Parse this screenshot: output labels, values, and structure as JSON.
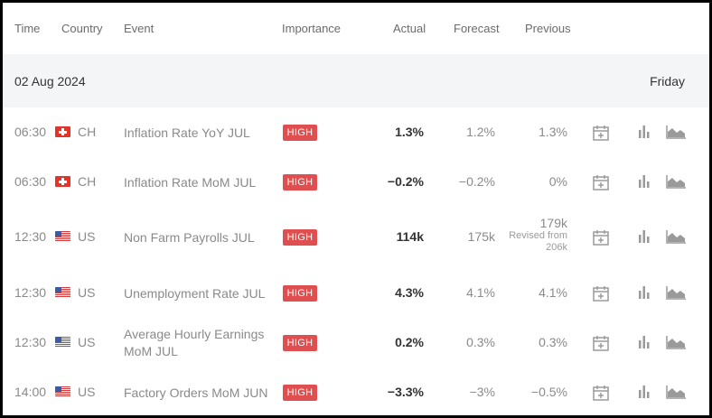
{
  "columns": {
    "time": "Time",
    "country": "Country",
    "event": "Event",
    "importance": "Importance",
    "actual": "Actual",
    "forecast": "Forecast",
    "previous": "Previous"
  },
  "date_header": {
    "date": "02 Aug 2024",
    "day": "Friday"
  },
  "rows": [
    {
      "time": "06:30",
      "country": "CH",
      "event": "Inflation Rate YoY JUL",
      "importance": "HIGH",
      "actual": "1.3%",
      "forecast": "1.2%",
      "previous": "1.3%"
    },
    {
      "time": "06:30",
      "country": "CH",
      "event": "Inflation Rate MoM JUL",
      "importance": "HIGH",
      "actual": "−0.2%",
      "forecast": "−0.2%",
      "previous": "0%"
    },
    {
      "time": "12:30",
      "country": "US",
      "event": "Non Farm Payrolls JUL",
      "importance": "HIGH",
      "actual": "114k",
      "forecast": "175k",
      "previous": "179k",
      "revised_label": "Revised from",
      "revised_value": "206k"
    },
    {
      "time": "12:30",
      "country": "US",
      "event": "Unemployment Rate JUL",
      "importance": "HIGH",
      "actual": "4.3%",
      "forecast": "4.1%",
      "previous": "4.1%"
    },
    {
      "time": "12:30",
      "country": "US",
      "event": "Average Hourly Earnings MoM JUL",
      "importance": "HIGH",
      "actual": "0.2%",
      "forecast": "0.3%",
      "previous": "0.3%"
    },
    {
      "time": "14:00",
      "country": "US",
      "event": "Factory Orders MoM JUN",
      "importance": "HIGH",
      "actual": "−3.3%",
      "forecast": "−3%",
      "previous": "−0.5%"
    }
  ],
  "icons": [
    "add-to-calendar-icon",
    "bar-chart-icon",
    "area-chart-icon"
  ],
  "colors": {
    "badge": "#e04f4f",
    "date_row_bg": "#f4f5f7",
    "muted_text": "#8a8a8a",
    "dark_text": "#333333"
  }
}
